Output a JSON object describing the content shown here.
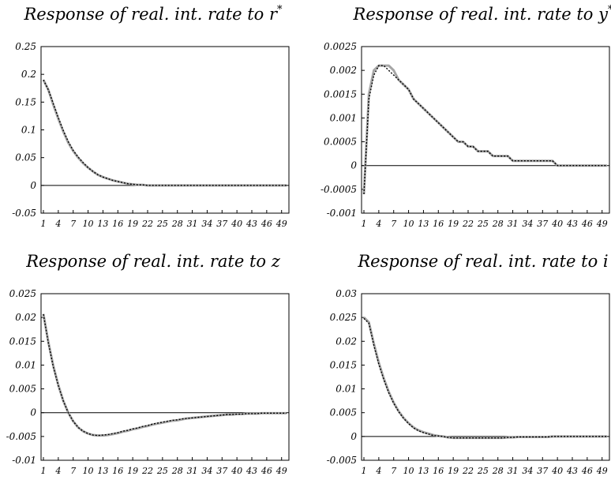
{
  "chart_data": [
    {
      "type": "line",
      "title": "Response of real. int. rate to r",
      "title_sup": "*",
      "ylim": [
        -0.05,
        0.25
      ],
      "yticks": [
        "0.25",
        "0.2",
        "0.15",
        "0.1",
        "0.05",
        "0",
        "-0.05"
      ],
      "xticks": [
        "1",
        "4",
        "7",
        "10",
        "13",
        "16",
        "19",
        "22",
        "25",
        "28",
        "31",
        "34",
        "37",
        "40",
        "43",
        "46",
        "49"
      ],
      "x_start": 1,
      "x_end": 50,
      "colors": {
        "band": "#a6a6a6",
        "mean": "#000000"
      },
      "series": [
        {
          "values": [
            0.19,
            0.172,
            0.145,
            0.12,
            0.097,
            0.077,
            0.062,
            0.05,
            0.04,
            0.032,
            0.025,
            0.019,
            0.015,
            0.012,
            0.009,
            0.007,
            0.005,
            0.003,
            0.002,
            0.001,
            0.001,
            0,
            0,
            0,
            0,
            0,
            0,
            0,
            0,
            0,
            0,
            0,
            0,
            0,
            0,
            0,
            0,
            0,
            0,
            0,
            0,
            0,
            0,
            0,
            0,
            0,
            0,
            0,
            0,
            0
          ]
        },
        {
          "values": [
            0.19,
            0.172,
            0.147,
            0.122,
            0.099,
            0.079,
            0.063,
            0.051,
            0.041,
            0.032,
            0.025,
            0.019,
            0.015,
            0.012,
            0.009,
            0.007,
            0.005,
            0.003,
            0.002,
            0.001,
            0.001,
            0,
            0,
            0,
            0,
            0,
            0,
            0,
            0,
            0,
            0,
            0,
            0,
            0,
            0,
            0,
            0,
            0,
            0,
            0,
            0,
            0,
            0,
            0,
            0,
            0,
            0,
            0,
            0,
            0
          ]
        }
      ]
    },
    {
      "type": "line",
      "title": "Response of real. int. rate to y",
      "title_sup": "*",
      "ylim": [
        -0.001,
        0.0025
      ],
      "yticks": [
        "0.0025",
        "0.002",
        "0.0015",
        "0.001",
        "0.0005",
        "0",
        "-0.0005",
        "-0.001"
      ],
      "xticks": [
        "1",
        "4",
        "7",
        "10",
        "13",
        "16",
        "19",
        "22",
        "25",
        "28",
        "31",
        "34",
        "37",
        "40",
        "43",
        "46",
        "49"
      ],
      "x_start": 1,
      "x_end": 50,
      "colors": {
        "band": "#a6a6a6",
        "mean": "#000000"
      },
      "series": [
        {
          "values": [
            -0.0006,
            0.0015,
            0.002,
            0.0021,
            0.0021,
            0.0021,
            0.002,
            0.0018,
            0.0017,
            0.0016,
            0.0014,
            0.0013,
            0.0012,
            0.0011,
            0.001,
            0.0009,
            0.0008,
            0.0007,
            0.0006,
            0.0005,
            0.0005,
            0.0004,
            0.0004,
            0.0003,
            0.0003,
            0.0003,
            0.0002,
            0.0002,
            0.0002,
            0.0002,
            0.0001,
            0.0001,
            0.0001,
            0.0001,
            0.0001,
            0.0001,
            0.0001,
            0.0001,
            0.0001,
            0,
            0,
            0,
            0,
            0,
            0,
            0,
            0,
            0,
            0,
            0
          ]
        },
        {
          "values": [
            -0.0006,
            0.0014,
            0.0019,
            0.0021,
            0.0021,
            0.002,
            0.0019,
            0.0018,
            0.0017,
            0.0016,
            0.0014,
            0.0013,
            0.0012,
            0.0011,
            0.001,
            0.0009,
            0.0008,
            0.0007,
            0.0006,
            0.0005,
            0.0005,
            0.0004,
            0.0004,
            0.0003,
            0.0003,
            0.0003,
            0.0002,
            0.0002,
            0.0002,
            0.0002,
            0.0001,
            0.0001,
            0.0001,
            0.0001,
            0.0001,
            0.0001,
            0.0001,
            0.0001,
            0.0001,
            0,
            0,
            0,
            0,
            0,
            0,
            0,
            0,
            0,
            0,
            0
          ]
        }
      ]
    },
    {
      "type": "line",
      "title": "Response of real. int. rate to z",
      "title_sup": "",
      "ylim": [
        -0.01,
        0.025
      ],
      "yticks": [
        "0.025",
        "0.02",
        "0.015",
        "0.01",
        "0.005",
        "0",
        "-0.005",
        "-0.01"
      ],
      "xticks": [
        "1",
        "4",
        "7",
        "10",
        "13",
        "16",
        "19",
        "22",
        "25",
        "28",
        "31",
        "34",
        "37",
        "40",
        "43",
        "46",
        "49"
      ],
      "x_start": 1,
      "x_end": 50,
      "colors": {
        "band": "#a6a6a6",
        "mean": "#000000"
      },
      "series": [
        {
          "values": [
            0.0207,
            0.0148,
            0.0098,
            0.0058,
            0.0025,
            0.0,
            -0.0018,
            -0.0031,
            -0.0039,
            -0.0044,
            -0.0047,
            -0.0048,
            -0.0048,
            -0.0047,
            -0.0045,
            -0.0043,
            -0.004,
            -0.0038,
            -0.0035,
            -0.0033,
            -0.003,
            -0.0028,
            -0.0025,
            -0.0023,
            -0.0021,
            -0.0019,
            -0.0017,
            -0.0016,
            -0.0014,
            -0.0012,
            -0.0011,
            -0.001,
            -0.0009,
            -0.0008,
            -0.0007,
            -0.0006,
            -0.0005,
            -0.0004,
            -0.0004,
            -0.0003,
            -0.0003,
            -0.0002,
            -0.0002,
            -0.0002,
            -0.0001,
            -0.0001,
            -0.0001,
            -0.0001,
            -0.0001,
            -0.0001
          ]
        },
        {
          "values": [
            0.0207,
            0.0146,
            0.0096,
            0.0057,
            0.0025,
            0.0,
            -0.0018,
            -0.0031,
            -0.0039,
            -0.0044,
            -0.0047,
            -0.0048,
            -0.0047,
            -0.0046,
            -0.0044,
            -0.0042,
            -0.0039,
            -0.0037,
            -0.0034,
            -0.0032,
            -0.0029,
            -0.0027,
            -0.0024,
            -0.0022,
            -0.002,
            -0.0018,
            -0.0016,
            -0.0015,
            -0.0013,
            -0.0012,
            -0.0011,
            -0.001,
            -0.0009,
            -0.0008,
            -0.0007,
            -0.0006,
            -0.0005,
            -0.0004,
            -0.0004,
            -0.0003,
            -0.0003,
            -0.0002,
            -0.0002,
            -0.0002,
            -0.0001,
            -0.0001,
            -0.0001,
            -0.0001,
            -0.0001,
            -0.0001
          ]
        }
      ]
    },
    {
      "type": "line",
      "title": "Response of real. int. rate to i",
      "title_sup": "",
      "ylim": [
        -0.005,
        0.03
      ],
      "yticks": [
        "0.03",
        "0.025",
        "0.02",
        "0.015",
        "0.01",
        "0.005",
        "0",
        "-0.005"
      ],
      "xticks": [
        "1",
        "4",
        "7",
        "10",
        "13",
        "16",
        "19",
        "22",
        "25",
        "28",
        "31",
        "34",
        "37",
        "40",
        "43",
        "46",
        "49"
      ],
      "x_start": 1,
      "x_end": 50,
      "colors": {
        "band": "#a6a6a6",
        "mean": "#000000"
      },
      "series": [
        {
          "values": [
            0.025,
            0.024,
            0.0195,
            0.0155,
            0.0122,
            0.0094,
            0.0071,
            0.0053,
            0.0039,
            0.0028,
            0.0019,
            0.0013,
            0.0009,
            0.0006,
            0.0003,
            0.0001,
            0,
            -0.0002,
            -0.0003,
            -0.0003,
            -0.0003,
            -0.0003,
            -0.0003,
            -0.0003,
            -0.0003,
            -0.0003,
            -0.0003,
            -0.0003,
            -0.0003,
            -0.0002,
            -0.0002,
            -0.0001,
            -0.0001,
            -0.0001,
            -0.0001,
            -0.0001,
            -0.0001,
            -0.0001,
            0,
            0,
            0,
            0,
            0,
            0,
            0,
            0,
            0,
            0,
            0,
            0
          ]
        },
        {
          "values": [
            0.0248,
            0.0238,
            0.0192,
            0.0152,
            0.012,
            0.0092,
            0.007,
            0.0052,
            0.0038,
            0.0027,
            0.0018,
            0.0012,
            0.0008,
            0.0005,
            0.0002,
            0.0001,
            0,
            -0.0002,
            -0.0003,
            -0.0003,
            -0.0003,
            -0.0003,
            -0.0003,
            -0.0003,
            -0.0003,
            -0.0003,
            -0.0003,
            -0.0003,
            -0.0003,
            -0.0002,
            -0.0002,
            -0.0001,
            -0.0001,
            -0.0001,
            -0.0001,
            -0.0001,
            -0.0001,
            -0.0001,
            0,
            0,
            0,
            0,
            0,
            0,
            0,
            0,
            0,
            0,
            0,
            0
          ]
        }
      ]
    }
  ]
}
